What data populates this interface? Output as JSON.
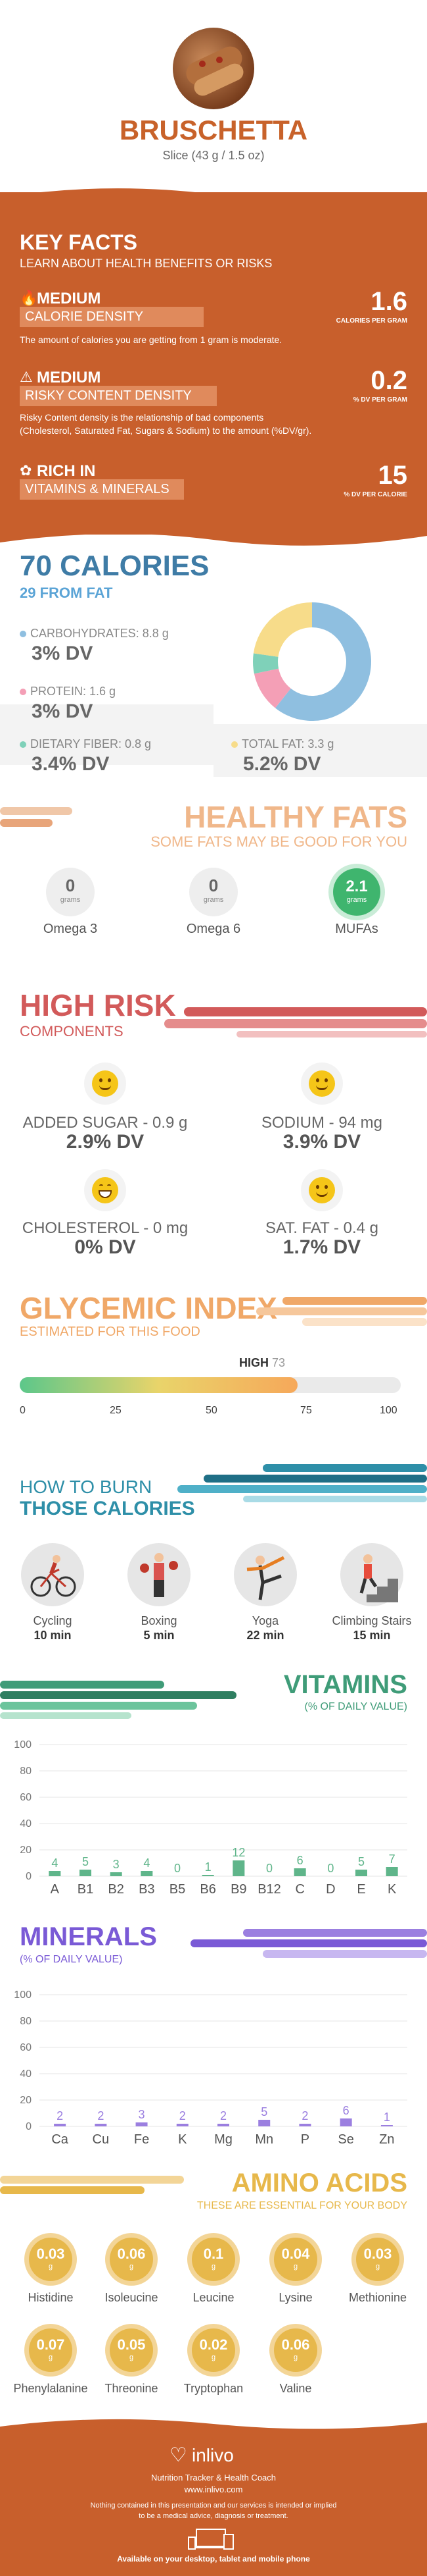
{
  "header": {
    "title": "BRUSCHETTA",
    "serving": "Slice (43 g / 1.5 oz)"
  },
  "key_facts": {
    "title": "KEY FACTS",
    "subtitle": "LEARN ABOUT HEALTH BENEFITS OR RISKS",
    "calorie_density": {
      "level": "MEDIUM",
      "label": "CALORIE DENSITY",
      "value": "1.6",
      "unit": "CALORIES PER GRAM",
      "desc": "The amount of calories you are getting from 1 gram is moderate."
    },
    "risky_content": {
      "level": "MEDIUM",
      "label": "RISKY CONTENT DENSITY",
      "value": "0.2",
      "unit": "% DV PER GRAM",
      "desc1": "Risky Content density is the relationship of bad components",
      "desc2": "(Cholesterol, Saturated Fat, Sugars & Sodium) to the amount (%DV/gr)."
    },
    "rich_in": {
      "level": "RICH IN",
      "label": "VITAMINS & MINERALS",
      "value": "15",
      "unit": "% DV PER CALORIE"
    }
  },
  "calories": {
    "title": "70 CALORIES",
    "from_fat": "29 FROM FAT",
    "carbs": {
      "label": "CARBOHYDRATES: 8.8 g",
      "dv": "3% DV"
    },
    "protein": {
      "label": "PROTEIN: 1.6 g",
      "dv": "3% DV"
    },
    "fiber": {
      "label": "DIETARY FIBER: 0.8 g",
      "dv": "3.4% DV"
    },
    "fat": {
      "label": "TOTAL FAT: 3.3 g",
      "dv": "5.2% DV"
    },
    "pie": [
      {
        "name": "carbohydrates",
        "value": 8.8,
        "color": "#8fbfe0"
      },
      {
        "name": "protein",
        "value": 1.6,
        "color": "#f49fb6"
      },
      {
        "name": "fiber",
        "value": 0.8,
        "color": "#7fd1b9"
      },
      {
        "name": "fat",
        "value": 3.3,
        "color": "#f7dc8a"
      }
    ]
  },
  "healthy_fats": {
    "title": "HEALTHY FATS",
    "subtitle": "SOME FATS MAY BE GOOD FOR YOU",
    "items": [
      {
        "value": "0",
        "unit": "grams",
        "name": "Omega 3"
      },
      {
        "value": "0",
        "unit": "grams",
        "name": "Omega 6"
      },
      {
        "value": "2.1",
        "unit": "grams",
        "name": "MUFAs"
      }
    ]
  },
  "high_risk": {
    "title": "HIGH RISK",
    "subtitle": "COMPONENTS",
    "items": [
      {
        "label": "ADDED SUGAR - 0.9 g",
        "dv": "2.9% DV"
      },
      {
        "label": "SODIUM - 94 mg",
        "dv": "3.9% DV"
      },
      {
        "label": "CHOLESTEROL - 0 mg",
        "dv": "0% DV"
      },
      {
        "label": "SAT. FAT - 0.4 g",
        "dv": "1.7% DV"
      }
    ]
  },
  "glycemic": {
    "title": "GLYCEMIC INDEX",
    "subtitle": "ESTIMATED FOR THIS FOOD",
    "level": "HIGH",
    "value": 73,
    "ticks": [
      "0",
      "25",
      "50",
      "75",
      "100"
    ]
  },
  "burn": {
    "title1": "HOW TO BURN",
    "title2": "THOSE CALORIES",
    "items": [
      {
        "name": "Cycling",
        "time": "10 min",
        "icon": "cycling-icon"
      },
      {
        "name": "Boxing",
        "time": "5 min",
        "icon": "boxing-icon"
      },
      {
        "name": "Yoga",
        "time": "22 min",
        "icon": "yoga-icon"
      },
      {
        "name": "Climbing Stairs",
        "time": "15 min",
        "icon": "stairs-icon"
      }
    ]
  },
  "chart_data": [
    {
      "type": "bar",
      "title": "VITAMINS",
      "subtitle": "(% OF DAILY VALUE)",
      "categories": [
        "A",
        "B1",
        "B2",
        "B3",
        "B5",
        "B6",
        "B9",
        "B12",
        "C",
        "D",
        "E",
        "K"
      ],
      "values": [
        4,
        5,
        3,
        4,
        0,
        1,
        12,
        0,
        6,
        0,
        5,
        7
      ],
      "yticks": [
        "0",
        "20",
        "40",
        "60",
        "80",
        "100"
      ],
      "ylim": [
        0,
        100
      ],
      "color": "#5fb58a"
    },
    {
      "type": "bar",
      "title": "MINERALS",
      "subtitle": "(% OF DAILY VALUE)",
      "categories": [
        "Ca",
        "Cu",
        "Fe",
        "K",
        "Mg",
        "Mn",
        "P",
        "Se",
        "Zn"
      ],
      "values": [
        2,
        2,
        3,
        2,
        2,
        5,
        2,
        6,
        1
      ],
      "yticks": [
        "0",
        "20",
        "40",
        "60",
        "80",
        "100"
      ],
      "ylim": [
        0,
        100
      ],
      "color": "#9b7fe0"
    }
  ],
  "amino": {
    "title": "AMINO ACIDS",
    "subtitle": "THESE ARE ESSENTIAL FOR YOUR BODY",
    "unit": "g",
    "items": [
      {
        "value": "0.03",
        "name": "Histidine"
      },
      {
        "value": "0.06",
        "name": "Isoleucine"
      },
      {
        "value": "0.1",
        "name": "Leucine"
      },
      {
        "value": "0.04",
        "name": "Lysine"
      },
      {
        "value": "0.03",
        "name": "Methionine"
      },
      {
        "value": "0.07",
        "name": "Phenylalanine"
      },
      {
        "value": "0.05",
        "name": "Threonine"
      },
      {
        "value": "0.02",
        "name": "Tryptophan"
      },
      {
        "value": "0.06",
        "name": "Valine"
      }
    ]
  },
  "footer": {
    "brand": "inlivo",
    "tagline": "Nutrition Tracker & Health Coach",
    "url": "www.inlivo.com",
    "disclaimer1": "Nothing contained in this presentation and our services is intended or implied",
    "disclaimer2": "to be a medical advice, diagnosis or treatment.",
    "available": "Available on your desktop, tablet and mobile phone"
  },
  "colors": {
    "orange": "#c85f2c",
    "blue": "#3f7ca6",
    "teal": "#2e8fa8",
    "green": "#3f9c78",
    "purple": "#7a5ad6",
    "gold": "#e7b84b",
    "red": "#d25a5a"
  }
}
